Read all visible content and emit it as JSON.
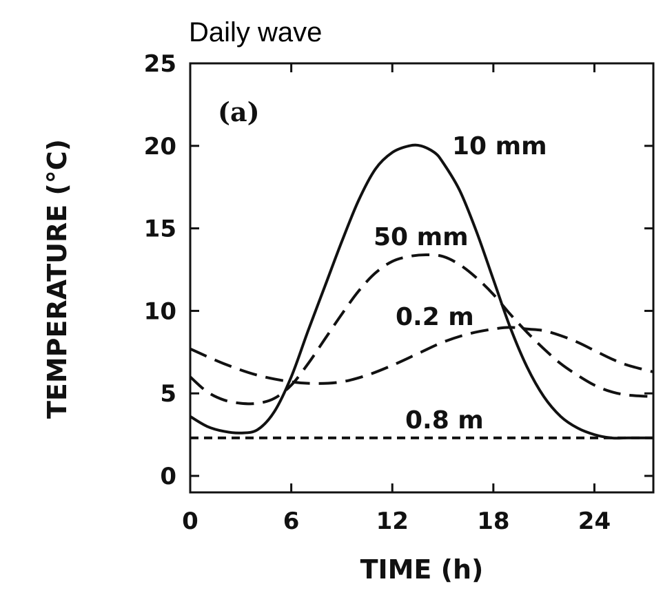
{
  "chart_data": {
    "type": "line",
    "title": "Daily wave",
    "panel_label": "(a)",
    "xlabel": "TIME (h)",
    "ylabel": "TEMPERATURE (°C)",
    "xlim": [
      0,
      27.5
    ],
    "ylim": [
      -1,
      25
    ],
    "x_ticks": [
      0,
      6,
      12,
      18,
      24
    ],
    "y_ticks": [
      0,
      5,
      10,
      15,
      20,
      25
    ],
    "grid": false,
    "series": [
      {
        "name": "10 mm",
        "style": "solid",
        "x": [
          0,
          1,
          2,
          3,
          4,
          5,
          6,
          7,
          8,
          9,
          10,
          11,
          12,
          13,
          13.7,
          14.5,
          15,
          16,
          17,
          18,
          19,
          20,
          21,
          22,
          23,
          24,
          25,
          26,
          27.5
        ],
        "y": [
          3.6,
          3.0,
          2.7,
          2.6,
          2.8,
          3.9,
          6.0,
          8.8,
          11.5,
          14.2,
          16.7,
          18.6,
          19.6,
          20.0,
          20.0,
          19.6,
          19.0,
          17.3,
          14.8,
          11.9,
          9.0,
          6.6,
          4.8,
          3.6,
          2.9,
          2.5,
          2.3,
          2.3,
          2.3
        ]
      },
      {
        "name": "50 mm",
        "style": "dashed",
        "x": [
          0,
          1,
          2,
          3,
          4,
          5,
          6,
          7,
          8,
          9,
          10,
          11,
          12,
          13,
          14,
          15,
          16,
          17,
          18,
          19,
          20,
          21,
          22,
          23,
          24,
          25,
          26,
          27.5
        ],
        "y": [
          6.0,
          5.1,
          4.6,
          4.4,
          4.4,
          4.7,
          5.5,
          6.8,
          8.3,
          9.8,
          11.2,
          12.3,
          13.0,
          13.3,
          13.4,
          13.3,
          12.8,
          12.0,
          11.0,
          9.8,
          8.7,
          7.7,
          6.8,
          6.1,
          5.5,
          5.1,
          4.9,
          4.8
        ]
      },
      {
        "name": "0.2 m",
        "style": "dashed",
        "x": [
          0,
          2,
          4,
          6,
          7.5,
          9,
          10.5,
          12,
          13.5,
          15,
          16.5,
          18,
          19,
          20,
          21,
          22,
          23,
          24,
          25,
          26,
          27.5
        ],
        "y": [
          7.7,
          6.8,
          6.1,
          5.7,
          5.6,
          5.7,
          6.1,
          6.7,
          7.4,
          8.1,
          8.6,
          8.9,
          9.0,
          8.9,
          8.8,
          8.5,
          8.1,
          7.6,
          7.1,
          6.7,
          6.3
        ]
      },
      {
        "name": "0.8 m",
        "style": "short-dashed",
        "x": [
          0,
          27.5
        ],
        "y": [
          2.3,
          2.3
        ]
      }
    ]
  }
}
